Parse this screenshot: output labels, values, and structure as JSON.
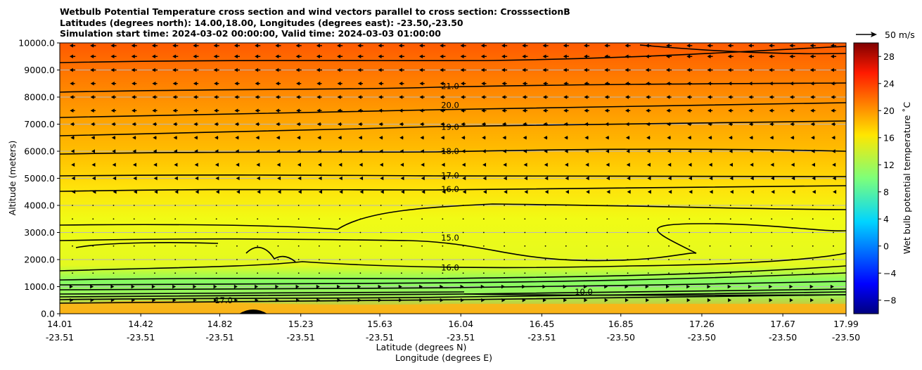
{
  "title_lines": [
    "Wetbulb Potential Temperature cross section and wind vectors parallel to cross section: CrosssectionB",
    "Latitudes (degrees north): 14.00,18.00, Longitudes (degrees east): -23.50,-23.50",
    "Simulation start time: 2024-03-02 00:00:00, Valid time: 2024-03-03 01:00:00"
  ],
  "chart_data": {
    "type": "heatmap",
    "title": "Wetbulb Potential Temperature cross section and wind vectors parallel to cross section: CrosssectionB",
    "xlabel": "Latitude (degrees N)",
    "xlabel2": "Longitude (degrees E)",
    "ylabel": "Altitude (meters)",
    "ylim": [
      0,
      10000
    ],
    "y_ticks": [
      "0.0",
      "1000.0",
      "2000.0",
      "3000.0",
      "4000.0",
      "5000.0",
      "6000.0",
      "7000.0",
      "8000.0",
      "9000.0",
      "10000.0"
    ],
    "x_ticks": [
      {
        "lat": "14.01",
        "lon": "-23.51"
      },
      {
        "lat": "14.42",
        "lon": "-23.51"
      },
      {
        "lat": "14.82",
        "lon": "-23.51"
      },
      {
        "lat": "15.23",
        "lon": "-23.51"
      },
      {
        "lat": "15.63",
        "lon": "-23.51"
      },
      {
        "lat": "16.04",
        "lon": "-23.51"
      },
      {
        "lat": "16.45",
        "lon": "-23.51"
      },
      {
        "lat": "16.85",
        "lon": "-23.50"
      },
      {
        "lat": "17.26",
        "lon": "-23.50"
      },
      {
        "lat": "17.67",
        "lon": "-23.50"
      },
      {
        "lat": "17.99",
        "lon": "-23.50"
      }
    ],
    "colorbar": {
      "label": "Wet bulb potential temperature $^\\circ$C",
      "label_display": "Wet bulb potential temperature ˚C",
      "range": [
        -10,
        30
      ],
      "ticks": [
        "−8",
        "−4",
        "0",
        "4",
        "8",
        "12",
        "16",
        "20",
        "24",
        "28"
      ],
      "colormap": "jet"
    },
    "wind_key": "50 m/s",
    "grid": true,
    "contours": [
      {
        "level": 21.0,
        "label": "21.0",
        "altitude": 8400
      },
      {
        "level": 20.0,
        "label": "20.0",
        "altitude": 7700
      },
      {
        "level": 19.0,
        "label": "19.0",
        "altitude": 6900
      },
      {
        "level": 18.0,
        "label": "18.0",
        "altitude": 6000
      },
      {
        "level": 17.0,
        "label": "17.0",
        "altitude": 5100
      },
      {
        "level": 16.0,
        "label": "16.0",
        "altitude": 4600
      },
      {
        "level": 15.0,
        "label": "15.0",
        "altitude": 2800
      },
      {
        "level": 16.0,
        "label": "16.0",
        "altitude": 1700
      },
      {
        "level": 17.0,
        "label": "17.0",
        "altitude": 500
      },
      {
        "level": 10.0,
        "label": "10.0",
        "altitude": 800
      }
    ],
    "wind_rows_altitude": [
      9900,
      9500,
      9000,
      8500,
      8000,
      7500,
      7000,
      6500,
      6000,
      5500,
      5000,
      4500,
      4000,
      3500,
      3000,
      2500,
      2000,
      1500,
      1000,
      500
    ],
    "wind_u_by_row": [
      -9,
      -9,
      -9,
      -8,
      -8,
      -8,
      -7,
      -6,
      -5,
      -4,
      -3,
      -2,
      -1,
      -1,
      0,
      0,
      1,
      1,
      2,
      3
    ]
  }
}
